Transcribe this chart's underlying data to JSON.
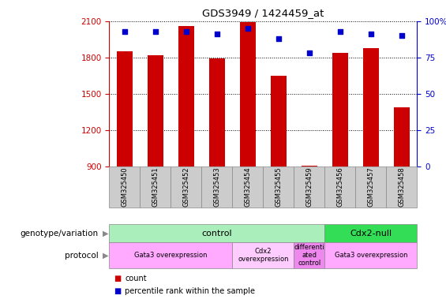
{
  "title": "GDS3949 / 1424459_at",
  "samples": [
    "GSM325450",
    "GSM325451",
    "GSM325452",
    "GSM325453",
    "GSM325454",
    "GSM325455",
    "GSM325459",
    "GSM325456",
    "GSM325457",
    "GSM325458"
  ],
  "counts": [
    1855,
    1820,
    2060,
    1790,
    2090,
    1650,
    910,
    1840,
    1880,
    1390
  ],
  "percentiles": [
    93,
    93,
    93,
    91,
    95,
    88,
    78,
    93,
    91,
    90
  ],
  "ylim_left": [
    900,
    2100
  ],
  "ylim_right": [
    0,
    100
  ],
  "yticks_left": [
    900,
    1200,
    1500,
    1800,
    2100
  ],
  "yticks_right": [
    0,
    25,
    50,
    75,
    100
  ],
  "bar_color": "#cc0000",
  "dot_color": "#0000cc",
  "genotype_groups": [
    {
      "label": "control",
      "start": 0,
      "end": 7,
      "color": "#aaeebb"
    },
    {
      "label": "Cdx2-null",
      "start": 7,
      "end": 10,
      "color": "#33dd55"
    }
  ],
  "protocol_groups": [
    {
      "label": "Gata3 overexpression",
      "start": 0,
      "end": 4,
      "color": "#ffaaff"
    },
    {
      "label": "Cdx2\noverexpression",
      "start": 4,
      "end": 6,
      "color": "#ffccff"
    },
    {
      "label": "differenti\nated\ncontrol",
      "start": 6,
      "end": 7,
      "color": "#ee88ee"
    },
    {
      "label": "Gata3 overexpression",
      "start": 7,
      "end": 10,
      "color": "#ffaaff"
    }
  ],
  "legend_items": [
    {
      "label": "count",
      "color": "#cc0000"
    },
    {
      "label": "percentile rank within the sample",
      "color": "#0000cc"
    }
  ],
  "left_axis_color": "#cc0000",
  "right_axis_color": "#0000cc",
  "sample_box_color": "#cccccc",
  "genotype_row_label": "genotype/variation",
  "protocol_row_label": "protocol"
}
